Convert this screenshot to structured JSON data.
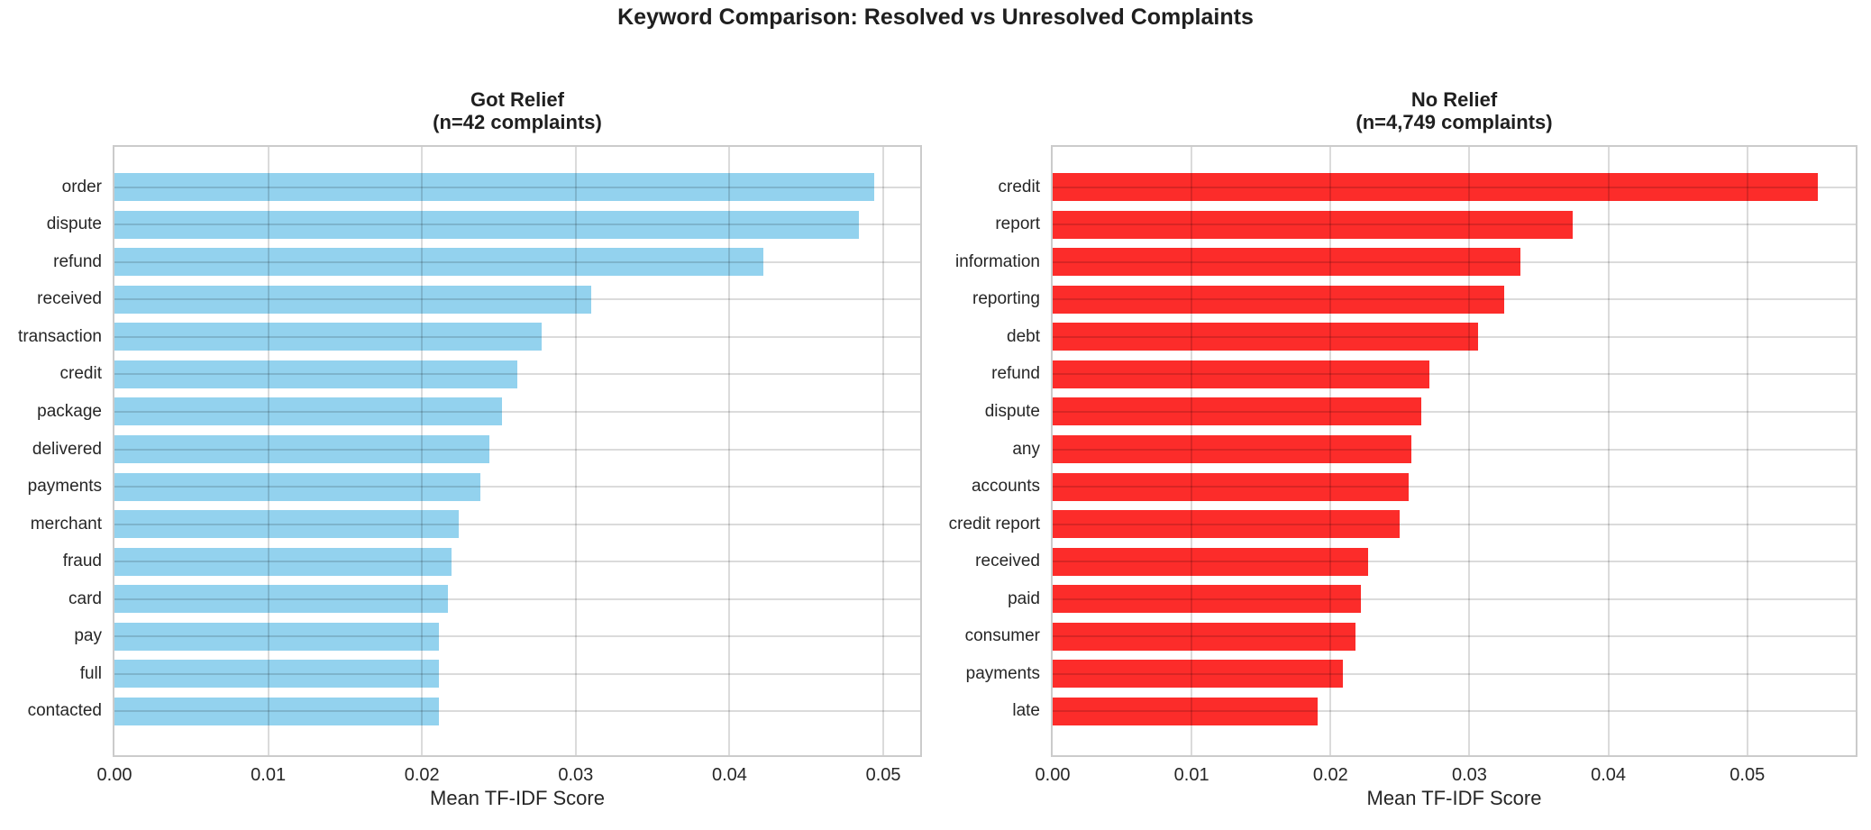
{
  "figure_title": "Keyword Comparison: Resolved vs Unresolved Complaints",
  "chart_data": [
    {
      "type": "bar",
      "orientation": "horizontal",
      "title": "Got Relief",
      "subtitle": "(n=42 complaints)",
      "bar_color": "#93d2ee",
      "xlabel": "Mean TF-IDF Score",
      "xlim": [
        0,
        0.0524
      ],
      "xticks": [
        0,
        0.01,
        0.02,
        0.03,
        0.04,
        0.05
      ],
      "xtick_labels": [
        "0.00",
        "0.01",
        "0.02",
        "0.03",
        "0.04",
        "0.05"
      ],
      "grid": true,
      "categories": [
        "order",
        "dispute",
        "refund",
        "received",
        "transaction",
        "credit",
        "package",
        "delivered",
        "payments",
        "merchant",
        "fraud",
        "card",
        "pay",
        "full",
        "contacted"
      ],
      "values": [
        0.0494,
        0.0484,
        0.0422,
        0.031,
        0.0278,
        0.0262,
        0.0252,
        0.0244,
        0.0238,
        0.0224,
        0.0219,
        0.0217,
        0.0211,
        0.0211,
        0.0211
      ]
    },
    {
      "type": "bar",
      "orientation": "horizontal",
      "title": "No Relief",
      "subtitle": "(n=4,749 complaints)",
      "bar_color": "#fc2c2a",
      "xlabel": "Mean TF-IDF Score",
      "xlim": [
        0,
        0.0578
      ],
      "xticks": [
        0,
        0.01,
        0.02,
        0.03,
        0.04,
        0.05
      ],
      "xtick_labels": [
        "0.00",
        "0.01",
        "0.02",
        "0.03",
        "0.04",
        "0.05"
      ],
      "grid": true,
      "categories": [
        "credit",
        "report",
        "information",
        "reporting",
        "debt",
        "refund",
        "dispute",
        "any",
        "accounts",
        "credit report",
        "received",
        "paid",
        "consumer",
        "payments",
        "late"
      ],
      "values": [
        0.0551,
        0.0374,
        0.0337,
        0.0325,
        0.0306,
        0.0271,
        0.0265,
        0.0258,
        0.0256,
        0.025,
        0.0227,
        0.0222,
        0.0218,
        0.0209,
        0.0191
      ]
    }
  ]
}
